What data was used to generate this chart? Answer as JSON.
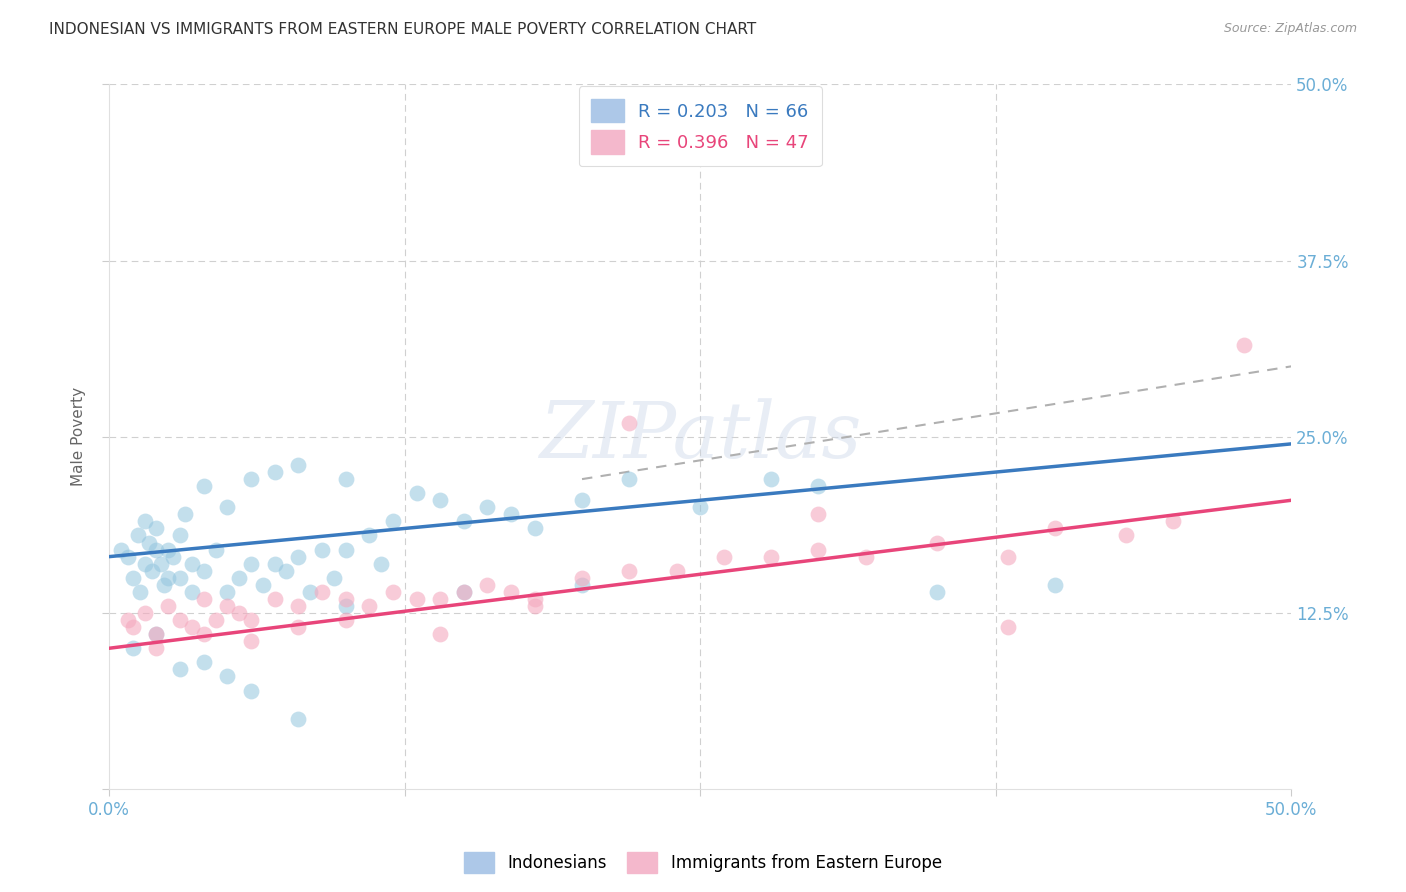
{
  "title": "INDONESIAN VS IMMIGRANTS FROM EASTERN EUROPE MALE POVERTY CORRELATION CHART",
  "source": "Source: ZipAtlas.com",
  "ylabel": "Male Poverty",
  "legend1_label": "Indonesians",
  "legend2_label": "Immigrants from Eastern Europe",
  "r1": 0.203,
  "n1": 66,
  "r2": 0.396,
  "n2": 47,
  "blue_scatter_color": "#92c5de",
  "pink_scatter_color": "#f4a9be",
  "blue_line_color": "#3a7abf",
  "pink_line_color": "#e8457a",
  "dash_line_color": "#b0b0b0",
  "grid_color": "#d0d0d0",
  "bg_color": "#ffffff",
  "title_color": "#333333",
  "tick_color": "#6baed6",
  "xlim": [
    0,
    50
  ],
  "ylim": [
    0,
    50
  ],
  "blue_line_x": [
    0,
    50
  ],
  "blue_line_y": [
    16.5,
    24.5
  ],
  "pink_line_x": [
    0,
    50
  ],
  "pink_line_y": [
    10.0,
    20.5
  ],
  "dash_line_x": [
    20,
    50
  ],
  "dash_line_y": [
    22.0,
    30.0
  ],
  "indo_x": [
    0.5,
    0.8,
    1.0,
    1.2,
    1.3,
    1.5,
    1.5,
    1.7,
    1.8,
    2.0,
    2.0,
    2.2,
    2.3,
    2.5,
    2.5,
    2.7,
    3.0,
    3.0,
    3.2,
    3.5,
    3.5,
    4.0,
    4.0,
    4.5,
    5.0,
    5.0,
    5.5,
    6.0,
    6.0,
    6.5,
    7.0,
    7.0,
    7.5,
    8.0,
    8.0,
    8.5,
    9.0,
    9.5,
    10.0,
    10.0,
    11.0,
    11.5,
    12.0,
    13.0,
    14.0,
    15.0,
    16.0,
    17.0,
    18.0,
    20.0,
    22.0,
    25.0,
    28.0,
    30.0,
    35.0,
    40.0,
    1.0,
    2.0,
    3.0,
    4.0,
    5.0,
    6.0,
    8.0,
    10.0,
    15.0,
    20.0
  ],
  "indo_y": [
    17.0,
    16.5,
    15.0,
    18.0,
    14.0,
    16.0,
    19.0,
    17.5,
    15.5,
    17.0,
    18.5,
    16.0,
    14.5,
    15.0,
    17.0,
    16.5,
    15.0,
    18.0,
    19.5,
    14.0,
    16.0,
    15.5,
    21.5,
    17.0,
    14.0,
    20.0,
    15.0,
    16.0,
    22.0,
    14.5,
    16.0,
    22.5,
    15.5,
    16.5,
    23.0,
    14.0,
    17.0,
    15.0,
    17.0,
    22.0,
    18.0,
    16.0,
    19.0,
    21.0,
    20.5,
    19.0,
    20.0,
    19.5,
    18.5,
    20.5,
    22.0,
    20.0,
    22.0,
    21.5,
    14.0,
    14.5,
    10.0,
    11.0,
    8.5,
    9.0,
    8.0,
    7.0,
    5.0,
    13.0,
    14.0,
    14.5
  ],
  "east_x": [
    0.8,
    1.0,
    1.5,
    2.0,
    2.5,
    3.0,
    3.5,
    4.0,
    4.5,
    5.0,
    5.5,
    6.0,
    7.0,
    8.0,
    9.0,
    10.0,
    11.0,
    12.0,
    13.0,
    14.0,
    15.0,
    16.0,
    17.0,
    18.0,
    20.0,
    22.0,
    24.0,
    26.0,
    28.0,
    30.0,
    32.0,
    35.0,
    38.0,
    40.0,
    43.0,
    45.0,
    48.0,
    2.0,
    4.0,
    6.0,
    8.0,
    10.0,
    14.0,
    18.0,
    22.0,
    30.0,
    38.0
  ],
  "east_y": [
    12.0,
    11.5,
    12.5,
    11.0,
    13.0,
    12.0,
    11.5,
    13.5,
    12.0,
    13.0,
    12.5,
    12.0,
    13.5,
    13.0,
    14.0,
    13.5,
    13.0,
    14.0,
    13.5,
    13.5,
    14.0,
    14.5,
    14.0,
    13.0,
    15.0,
    15.5,
    15.5,
    16.5,
    16.5,
    17.0,
    16.5,
    17.5,
    16.5,
    18.5,
    18.0,
    19.0,
    31.5,
    10.0,
    11.0,
    10.5,
    11.5,
    12.0,
    11.0,
    13.5,
    26.0,
    19.5,
    11.5
  ]
}
